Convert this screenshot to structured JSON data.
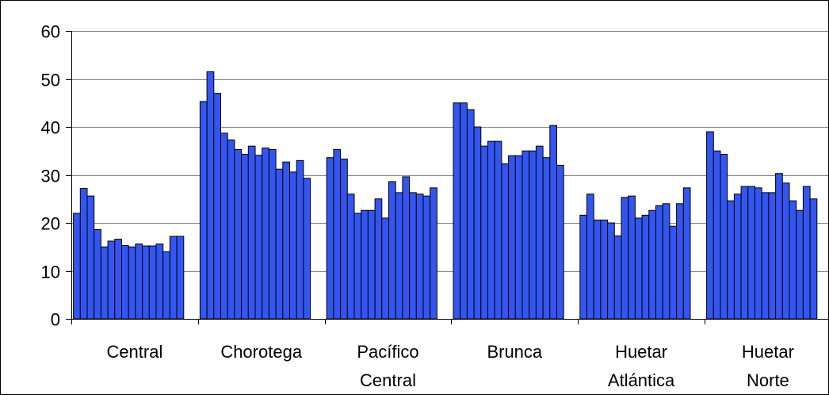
{
  "chart_data": {
    "type": "bar",
    "title": "",
    "xlabel": "",
    "ylabel": "",
    "ylim": [
      0,
      60
    ],
    "yticks": [
      0,
      10,
      20,
      30,
      40,
      50,
      60
    ],
    "grid": true,
    "legend": "none",
    "bar_color": "#3356F0",
    "bar_edge_color": "#000000",
    "groups": [
      {
        "label_lines": [
          "Central"
        ],
        "values": [
          22,
          27.2,
          25.6,
          18.6,
          15,
          16.2,
          16.6,
          15.3,
          15,
          15.6,
          15.2,
          15.2,
          15.6,
          14,
          17.2,
          17.2
        ]
      },
      {
        "label_lines": [
          "Chorotega"
        ],
        "values": [
          45.3,
          51.5,
          47,
          38.7,
          37.3,
          35.3,
          34.3,
          36,
          34.1,
          35.6,
          35.3,
          31.2,
          32.7,
          30.6,
          33,
          29.3
        ]
      },
      {
        "label_lines": [
          "Pacífico",
          "Central"
        ],
        "values": [
          33.6,
          35.3,
          33.3,
          26,
          22,
          22.6,
          22.6,
          25,
          21,
          28.6,
          26.3,
          29.6,
          26.3,
          26,
          25.6,
          27.3
        ]
      },
      {
        "label_lines": [
          "Brunca"
        ],
        "values": [
          45,
          45,
          43.6,
          40,
          36,
          37,
          37,
          32.3,
          34,
          34,
          35,
          35,
          36,
          33.6,
          40.3,
          32
        ]
      },
      {
        "label_lines": [
          "Huetar",
          "Atlántica"
        ],
        "values": [
          21.6,
          26,
          20.6,
          20.6,
          20,
          17.3,
          25.3,
          25.6,
          21,
          21.6,
          22.6,
          23.6,
          24,
          19.3,
          24,
          27.3
        ]
      },
      {
        "label_lines": [
          "Huetar",
          "Norte"
        ],
        "values": [
          39,
          35,
          34.3,
          24.6,
          26,
          27.6,
          27.6,
          27.3,
          26.3,
          26.3,
          30.3,
          28.3,
          24.6,
          22.6,
          27.6,
          25
        ]
      }
    ]
  }
}
